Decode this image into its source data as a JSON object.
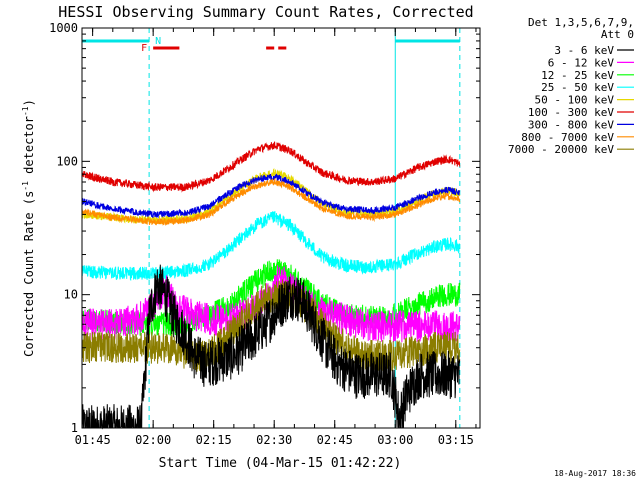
{
  "chart_data": {
    "type": "line",
    "title": "HESSI Observing Summary Count Rates, Corrected",
    "xlabel": "Start Time (04-Mar-15 01:42:22)",
    "ylabel": "Corrected Count Rate (s⁻¹ detector⁻¹)",
    "ylabel_main": "Corrected Count Rate (s",
    "ylabel_sup1": "-1",
    "ylabel_mid": " detector",
    "ylabel_sup2": "-1",
    "ylabel_end": ")",
    "timestamp": "18-Aug-2017 18:36",
    "y_scale": "log",
    "ylim": [
      1,
      1000
    ],
    "xlim": [
      "01:42:22",
      "03:21:00"
    ],
    "y_ticks": [
      {
        "value": 1,
        "label": "1"
      },
      {
        "value": 10,
        "label": "10"
      },
      {
        "value": 100,
        "label": "100"
      },
      {
        "value": 1000,
        "label": "1000"
      }
    ],
    "x_ticks": [
      {
        "time": "01:45",
        "label": "01:45"
      },
      {
        "time": "02:00",
        "label": "02:00"
      },
      {
        "time": "02:15",
        "label": "02:15"
      },
      {
        "time": "02:30",
        "label": "02:30"
      },
      {
        "time": "02:45",
        "label": "02:45"
      },
      {
        "time": "03:00",
        "label": "03:00"
      },
      {
        "time": "03:15",
        "label": "03:15"
      }
    ],
    "legend": {
      "placement": "right",
      "header1": "Det 1,3,5,6,7,9,",
      "header2": "Att 0"
    },
    "flags": {
      "night_label": "N",
      "flare_label": "F",
      "night_color": "#00e5e5",
      "flare_color": "#e00000",
      "night_bars": [
        [
          "01:42:22",
          "01:59:00"
        ],
        [
          "03:00:00",
          "03:16:00"
        ]
      ],
      "flare_bars": [
        [
          "02:00:00",
          "02:06:30"
        ],
        [
          "02:28:00",
          "02:30:00"
        ],
        [
          "02:31:00",
          "02:33:00"
        ]
      ],
      "night_lines_solid": [
        "01:42:22",
        "03:00:00"
      ],
      "night_lines_dashed": [
        "01:59:00",
        "03:16:00"
      ]
    },
    "series": [
      {
        "name": "3 - 6 keV",
        "color": "#000000",
        "x": [
          "01:42:22",
          "01:57:00",
          "01:59:00",
          "02:01:00",
          "02:03:00",
          "02:05:00",
          "02:08:00",
          "02:10:00",
          "02:13:00",
          "02:16:00",
          "02:20:00",
          "02:24:00",
          "02:28:00",
          "02:31:00",
          "02:34:00",
          "02:37:00",
          "02:40:00",
          "02:43:00",
          "02:46:00",
          "02:50:00",
          "02:55:00",
          "02:59:00",
          "03:01:00",
          "03:03:00",
          "03:06:00",
          "03:10:00",
          "03:14:00",
          "03:16:00"
        ],
        "values": [
          1.0,
          1.0,
          7,
          12,
          10,
          7,
          5,
          3.5,
          3,
          3.2,
          3.5,
          4.5,
          6,
          8,
          10,
          9,
          6,
          4,
          3,
          2.5,
          2.5,
          2.5,
          1.2,
          1.8,
          2.5,
          2.5,
          2.5,
          2.5
        ]
      },
      {
        "name": "6 - 12 keV",
        "color": "#ff00ff",
        "x": [
          "01:42:22",
          "01:50:00",
          "01:56:00",
          "02:00:00",
          "02:03:00",
          "02:06:00",
          "02:10:00",
          "02:14:00",
          "02:18:00",
          "02:22:00",
          "02:26:00",
          "02:29:00",
          "02:31:00",
          "02:33:00",
          "02:36:00",
          "02:40:00",
          "02:44:00",
          "02:48:00",
          "02:52:00",
          "02:56:00",
          "03:00:00",
          "03:04:00",
          "03:08:00",
          "03:12:00",
          "03:16:00"
        ],
        "values": [
          6,
          6,
          6.5,
          8,
          11,
          8,
          7,
          6.5,
          6.5,
          7,
          8,
          10,
          13,
          12,
          10,
          8,
          7,
          6.5,
          6,
          5.8,
          5.8,
          5.8,
          5.8,
          5.8,
          5.8
        ]
      },
      {
        "name": "12 - 25 keV",
        "color": "#00ff00",
        "x": [
          "01:42:22",
          "01:50:00",
          "02:00:00",
          "02:06:00",
          "02:10:00",
          "02:14:00",
          "02:18:00",
          "02:22:00",
          "02:26:00",
          "02:30:00",
          "02:34:00",
          "02:38:00",
          "02:42:00",
          "02:48:00",
          "02:54:00",
          "03:00:00",
          "03:04:00",
          "03:08:00",
          "03:12:00",
          "03:16:00"
        ],
        "values": [
          6.5,
          6.2,
          6,
          6,
          6.3,
          7,
          8,
          10,
          13,
          15.5,
          14,
          11,
          8.5,
          7,
          6.8,
          7,
          8,
          9,
          10,
          10
        ]
      },
      {
        "name": "25 - 50 keV",
        "color": "#00ffff",
        "x": [
          "01:42:22",
          "01:50:00",
          "02:00:00",
          "02:08:00",
          "02:14:00",
          "02:18:00",
          "02:22:00",
          "02:26:00",
          "02:30:00",
          "02:34:00",
          "02:38:00",
          "02:42:00",
          "02:48:00",
          "02:54:00",
          "03:00:00",
          "03:05:00",
          "03:10:00",
          "03:13:00",
          "03:16:00"
        ],
        "values": [
          15,
          14.5,
          14.5,
          15,
          17,
          21,
          27,
          34,
          38,
          33,
          25,
          19,
          16.5,
          16,
          17,
          20,
          23,
          24,
          23
        ]
      },
      {
        "name": "50 - 100 keV",
        "color": "#e6d800",
        "x": [
          "01:42:22",
          "01:50:00",
          "02:00:00",
          "02:08:00",
          "02:14:00",
          "02:18:00",
          "02:22:00",
          "02:26:00",
          "02:30:00",
          "02:34:00",
          "02:38:00",
          "02:42:00",
          "02:48:00",
          "02:54:00",
          "03:00:00",
          "03:05:00",
          "03:10:00",
          "03:13:00",
          "03:16:00"
        ],
        "values": [
          40,
          38,
          36,
          37,
          42,
          52,
          64,
          76,
          82,
          75,
          60,
          48,
          41,
          40,
          42,
          50,
          58,
          60,
          58
        ]
      },
      {
        "name": "100 - 300 keV",
        "color": "#e00000",
        "x": [
          "01:42:22",
          "01:50:00",
          "02:00:00",
          "02:08:00",
          "02:14:00",
          "02:18:00",
          "02:22:00",
          "02:26:00",
          "02:30:00",
          "02:34:00",
          "02:38:00",
          "02:42:00",
          "02:48:00",
          "02:54:00",
          "03:00:00",
          "03:05:00",
          "03:10:00",
          "03:13:00",
          "03:16:00"
        ],
        "values": [
          80,
          70,
          64,
          64,
          72,
          86,
          104,
          124,
          132,
          120,
          98,
          82,
          72,
          70,
          74,
          88,
          100,
          104,
          96
        ]
      },
      {
        "name": "300 - 800 keV",
        "color": "#0000e0",
        "x": [
          "01:42:22",
          "01:50:00",
          "02:00:00",
          "02:08:00",
          "02:14:00",
          "02:18:00",
          "02:22:00",
          "02:26:00",
          "02:30:00",
          "02:34:00",
          "02:38:00",
          "02:42:00",
          "02:48:00",
          "02:54:00",
          "03:00:00",
          "03:05:00",
          "03:10:00",
          "03:13:00",
          "03:16:00"
        ],
        "values": [
          50,
          44,
          40,
          41,
          46,
          56,
          66,
          74,
          76,
          70,
          58,
          49,
          44,
          43,
          45,
          52,
          59,
          61,
          58
        ]
      },
      {
        "name": "800 - 7000 keV",
        "color": "#ff8c00",
        "x": [
          "01:42:22",
          "01:50:00",
          "02:00:00",
          "02:08:00",
          "02:14:00",
          "02:18:00",
          "02:22:00",
          "02:26:00",
          "02:30:00",
          "02:34:00",
          "02:38:00",
          "02:42:00",
          "02:48:00",
          "02:54:00",
          "03:00:00",
          "03:05:00",
          "03:10:00",
          "03:13:00",
          "03:16:00"
        ],
        "values": [
          42,
          38,
          35,
          36,
          40,
          49,
          58,
          66,
          70,
          64,
          53,
          44,
          39,
          38,
          40,
          46,
          53,
          55,
          52
        ]
      },
      {
        "name": "7000 - 20000 keV",
        "color": "#8b7d00",
        "x": [
          "01:42:22",
          "01:52:00",
          "02:00:00",
          "02:04:00",
          "02:08:00",
          "02:12:00",
          "02:16:00",
          "02:20:00",
          "02:24:00",
          "02:28:00",
          "02:32:00",
          "02:36:00",
          "02:40:00",
          "02:44:00",
          "02:48:00",
          "02:52:00",
          "02:56:00",
          "03:00:00",
          "03:04:00",
          "03:10:00",
          "03:16:00"
        ],
        "values": [
          4,
          4,
          4,
          4,
          3.6,
          3.4,
          4,
          5.5,
          7.5,
          9.5,
          10,
          9,
          7,
          5,
          4,
          3.5,
          3.5,
          3.5,
          3.7,
          4,
          4
        ]
      }
    ]
  }
}
